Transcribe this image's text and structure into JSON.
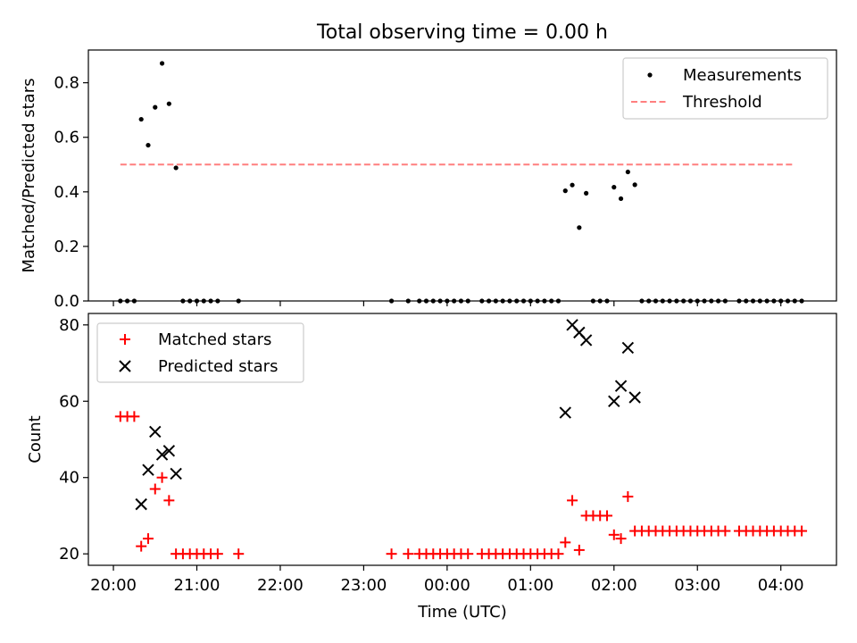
{
  "chart_data": [
    {
      "type": "scatter",
      "title": "Total observing time = 0.00 h",
      "xlabel": "",
      "ylabel": "Matched/Predicted stars",
      "ylim": [
        0,
        0.92
      ],
      "yticks": [
        0.0,
        0.2,
        0.4,
        0.6,
        0.8
      ],
      "ytick_labels": [
        "0.0",
        "0.2",
        "0.4",
        "0.6",
        "0.8"
      ],
      "xlim": [
        "19:42",
        "04:40"
      ],
      "legend_position": "top-right",
      "series": [
        {
          "name": "Measurements",
          "marker": "dot",
          "color": "#000000",
          "points": [
            [
              "20:05",
              0
            ],
            [
              "20:10",
              0
            ],
            [
              "20:15",
              0
            ],
            [
              "20:20",
              0.666
            ],
            [
              "20:25",
              0.571
            ],
            [
              "20:30",
              0.71
            ],
            [
              "20:35",
              0.871
            ],
            [
              "20:40",
              0.723
            ],
            [
              "20:45",
              0.488
            ],
            [
              "20:50",
              0
            ],
            [
              "20:55",
              0
            ],
            [
              "21:00",
              0
            ],
            [
              "21:05",
              0
            ],
            [
              "21:10",
              0
            ],
            [
              "21:15",
              0
            ],
            [
              "21:30",
              0
            ],
            [
              "23:20",
              0
            ],
            [
              "23:32",
              0
            ],
            [
              "23:40",
              0
            ],
            [
              "23:45",
              0
            ],
            [
              "23:50",
              0
            ],
            [
              "23:55",
              0
            ],
            [
              "00:00",
              0
            ],
            [
              "00:05",
              0
            ],
            [
              "00:10",
              0
            ],
            [
              "00:15",
              0
            ],
            [
              "00:25",
              0
            ],
            [
              "00:30",
              0
            ],
            [
              "00:35",
              0
            ],
            [
              "00:40",
              0
            ],
            [
              "00:45",
              0
            ],
            [
              "00:50",
              0
            ],
            [
              "00:55",
              0
            ],
            [
              "01:00",
              0
            ],
            [
              "01:05",
              0
            ],
            [
              "01:10",
              0
            ],
            [
              "01:15",
              0
            ],
            [
              "01:20",
              0
            ],
            [
              "01:25",
              0.404
            ],
            [
              "01:30",
              0.425
            ],
            [
              "01:35",
              0.269
            ],
            [
              "01:40",
              0.395
            ],
            [
              "01:45",
              0
            ],
            [
              "01:50",
              0
            ],
            [
              "01:55",
              0
            ],
            [
              "02:00",
              0.417
            ],
            [
              "02:05",
              0.375
            ],
            [
              "02:10",
              0.473
            ],
            [
              "02:15",
              0.426
            ],
            [
              "02:20",
              0
            ],
            [
              "02:25",
              0
            ],
            [
              "02:30",
              0
            ],
            [
              "02:35",
              0
            ],
            [
              "02:40",
              0
            ],
            [
              "02:45",
              0
            ],
            [
              "02:50",
              0
            ],
            [
              "02:55",
              0
            ],
            [
              "03:00",
              0
            ],
            [
              "03:05",
              0
            ],
            [
              "03:10",
              0
            ],
            [
              "03:15",
              0
            ],
            [
              "03:20",
              0
            ],
            [
              "03:30",
              0
            ],
            [
              "03:35",
              0
            ],
            [
              "03:40",
              0
            ],
            [
              "03:45",
              0
            ],
            [
              "03:50",
              0
            ],
            [
              "03:55",
              0
            ],
            [
              "04:00",
              0
            ],
            [
              "04:05",
              0
            ],
            [
              "04:10",
              0
            ],
            [
              "04:15",
              0
            ]
          ]
        },
        {
          "name": "Threshold",
          "style": "dashed-line",
          "color": "#ff7f7f",
          "points": [
            [
              "20:05",
              0.5
            ],
            [
              "04:10",
              0.5
            ]
          ]
        }
      ]
    },
    {
      "type": "scatter",
      "title": "",
      "xlabel": "Time (UTC)",
      "ylabel": "Count",
      "ylim": [
        17,
        83
      ],
      "yticks": [
        20,
        40,
        60,
        80
      ],
      "xlim": [
        "19:42",
        "04:40"
      ],
      "xticks": [
        "20:00",
        "21:00",
        "22:00",
        "23:00",
        "00:00",
        "01:00",
        "02:00",
        "03:00",
        "04:00"
      ],
      "legend_position": "top-left",
      "series": [
        {
          "name": "Matched stars",
          "marker": "plus",
          "color": "#ff0000",
          "points": [
            [
              "20:05",
              56
            ],
            [
              "20:10",
              56
            ],
            [
              "20:15",
              56
            ],
            [
              "20:20",
              22
            ],
            [
              "20:25",
              24
            ],
            [
              "20:30",
              37
            ],
            [
              "20:35",
              40
            ],
            [
              "20:40",
              34
            ],
            [
              "20:45",
              20
            ],
            [
              "20:50",
              20
            ],
            [
              "20:55",
              20
            ],
            [
              "21:00",
              20
            ],
            [
              "21:05",
              20
            ],
            [
              "21:10",
              20
            ],
            [
              "21:15",
              20
            ],
            [
              "21:30",
              20
            ],
            [
              "23:20",
              20
            ],
            [
              "23:32",
              20
            ],
            [
              "23:40",
              20
            ],
            [
              "23:45",
              20
            ],
            [
              "23:50",
              20
            ],
            [
              "23:55",
              20
            ],
            [
              "00:00",
              20
            ],
            [
              "00:05",
              20
            ],
            [
              "00:10",
              20
            ],
            [
              "00:15",
              20
            ],
            [
              "00:25",
              20
            ],
            [
              "00:30",
              20
            ],
            [
              "00:35",
              20
            ],
            [
              "00:40",
              20
            ],
            [
              "00:45",
              20
            ],
            [
              "00:50",
              20
            ],
            [
              "00:55",
              20
            ],
            [
              "01:00",
              20
            ],
            [
              "01:05",
              20
            ],
            [
              "01:10",
              20
            ],
            [
              "01:15",
              20
            ],
            [
              "01:20",
              20
            ],
            [
              "01:25",
              23
            ],
            [
              "01:30",
              34
            ],
            [
              "01:35",
              21
            ],
            [
              "01:40",
              30
            ],
            [
              "01:45",
              30
            ],
            [
              "01:50",
              30
            ],
            [
              "01:55",
              30
            ],
            [
              "02:00",
              25
            ],
            [
              "02:05",
              24
            ],
            [
              "02:10",
              35
            ],
            [
              "02:15",
              26
            ],
            [
              "02:20",
              26
            ],
            [
              "02:25",
              26
            ],
            [
              "02:30",
              26
            ],
            [
              "02:35",
              26
            ],
            [
              "02:40",
              26
            ],
            [
              "02:45",
              26
            ],
            [
              "02:50",
              26
            ],
            [
              "02:55",
              26
            ],
            [
              "03:00",
              26
            ],
            [
              "03:05",
              26
            ],
            [
              "03:10",
              26
            ],
            [
              "03:15",
              26
            ],
            [
              "03:20",
              26
            ],
            [
              "03:30",
              26
            ],
            [
              "03:35",
              26
            ],
            [
              "03:40",
              26
            ],
            [
              "03:45",
              26
            ],
            [
              "03:50",
              26
            ],
            [
              "03:55",
              26
            ],
            [
              "04:00",
              26
            ],
            [
              "04:05",
              26
            ],
            [
              "04:10",
              26
            ],
            [
              "04:15",
              26
            ]
          ]
        },
        {
          "name": "Predicted stars",
          "marker": "x",
          "color": "#000000",
          "points": [
            [
              "20:20",
              33
            ],
            [
              "20:25",
              42
            ],
            [
              "20:30",
              52
            ],
            [
              "20:35",
              46
            ],
            [
              "20:40",
              47
            ],
            [
              "20:45",
              41
            ],
            [
              "01:25",
              57
            ],
            [
              "01:30",
              80
            ],
            [
              "01:35",
              78
            ],
            [
              "01:40",
              76
            ],
            [
              "02:00",
              60
            ],
            [
              "02:05",
              64
            ],
            [
              "02:10",
              74
            ],
            [
              "02:15",
              61
            ]
          ]
        }
      ]
    }
  ]
}
